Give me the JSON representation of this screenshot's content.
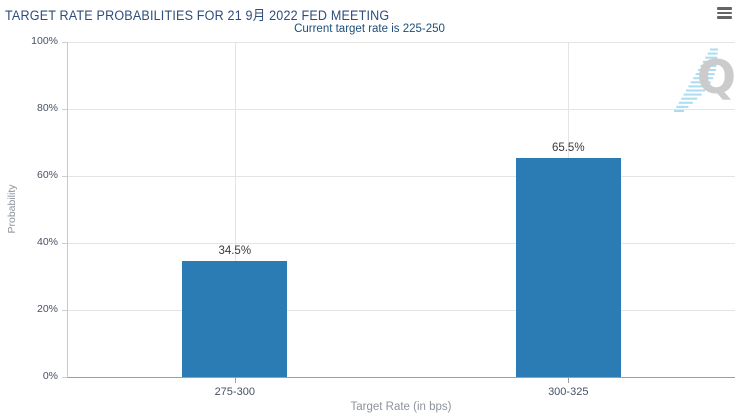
{
  "header": {
    "title": "TARGET RATE PROBABILITIES FOR 21 9月 2022 FED MEETING",
    "subtitle": "Current target rate is 225-250",
    "menu_icon": "hamburger-menu"
  },
  "watermark": {
    "letter": "Q"
  },
  "chart_data": {
    "type": "bar",
    "title": "TARGET RATE PROBABILITIES FOR 21 9月 2022 FED MEETING",
    "subtitle": "Current target rate is 225-250",
    "categories": [
      "275-300",
      "300-325"
    ],
    "values": [
      34.5,
      65.5
    ],
    "value_labels": [
      "34.5%",
      "65.5%"
    ],
    "xlabel": "Target Rate (in bps)",
    "ylabel": "Probability",
    "ylim": [
      0,
      100
    ],
    "yticks": [
      0,
      20,
      40,
      60,
      80,
      100
    ],
    "ytick_labels": [
      "0%",
      "20%",
      "40%",
      "60%",
      "80%",
      "100%"
    ],
    "grid": true,
    "legend": "none"
  },
  "colors": {
    "title": "#2e4d7b",
    "subtitle": "#1e4e7a",
    "bar": "#2b7cb5",
    "grid": "#e4e4e4",
    "axis_x": "#9e9e9e",
    "axis_y": "#c9c9c9",
    "tick_label": "#475166",
    "axis_title": "#8d929c",
    "value_label": "#3a3a3a",
    "menu_icon": "#646464",
    "watermark_letter": "#cbcbcb",
    "watermark_hatch": "#aadcf2"
  }
}
